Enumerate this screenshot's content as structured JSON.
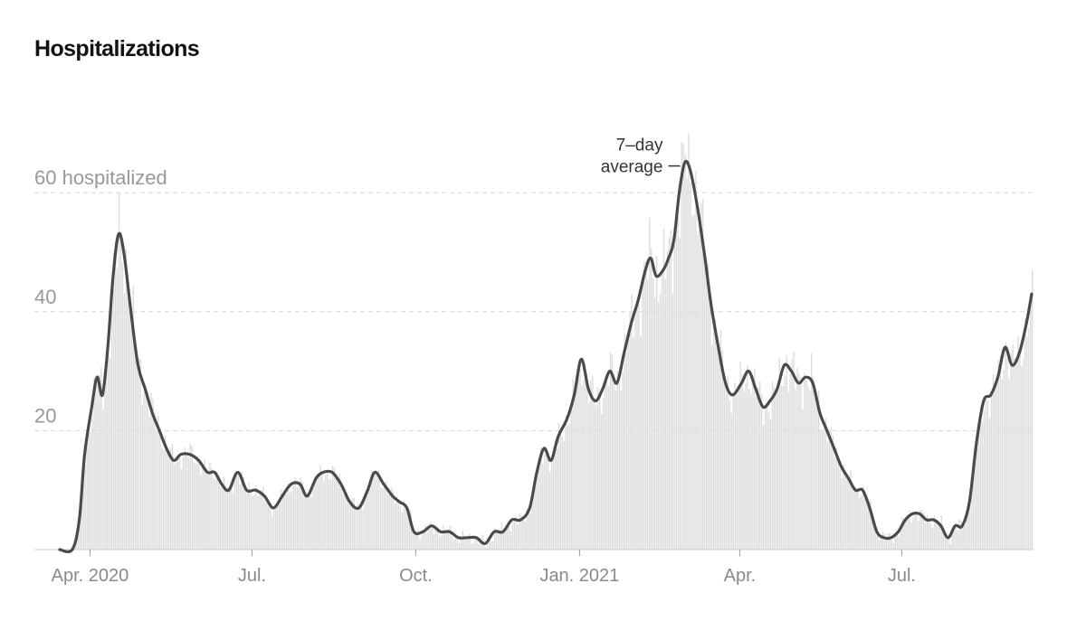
{
  "chart_data": {
    "type": "bar",
    "title": "Hospitalizations",
    "y_unit_label": "hospitalized",
    "ylim": [
      0,
      72
    ],
    "y_ticks": [
      20,
      40,
      60
    ],
    "grid": "horizontal-dashed",
    "x_ticks": [
      {
        "date": "2020-04-01",
        "label": "Apr. 2020"
      },
      {
        "date": "2020-07-01",
        "label": "Jul."
      },
      {
        "date": "2020-10-01",
        "label": "Oct."
      },
      {
        "date": "2021-01-01",
        "label": "Jan. 2021"
      },
      {
        "date": "2021-04-01",
        "label": "Apr."
      },
      {
        "date": "2021-07-01",
        "label": "Jul."
      }
    ],
    "date_range": [
      "2020-03-15",
      "2021-09-12"
    ],
    "series": [
      {
        "name": "7-day average",
        "kind": "line",
        "color": "#4a4a4a",
        "points": [
          [
            "2020-03-15",
            0
          ],
          [
            "2020-03-22",
            0
          ],
          [
            "2020-03-26",
            5
          ],
          [
            "2020-03-29",
            16
          ],
          [
            "2020-04-02",
            24
          ],
          [
            "2020-04-05",
            29
          ],
          [
            "2020-04-08",
            26
          ],
          [
            "2020-04-11",
            34
          ],
          [
            "2020-04-14",
            46
          ],
          [
            "2020-04-17",
            53
          ],
          [
            "2020-04-20",
            50
          ],
          [
            "2020-04-24",
            40
          ],
          [
            "2020-04-28",
            31
          ],
          [
            "2020-05-02",
            27
          ],
          [
            "2020-05-06",
            23
          ],
          [
            "2020-05-10",
            20
          ],
          [
            "2020-05-14",
            17
          ],
          [
            "2020-05-18",
            15
          ],
          [
            "2020-05-22",
            16
          ],
          [
            "2020-05-27",
            16
          ],
          [
            "2020-06-01",
            15
          ],
          [
            "2020-06-06",
            13
          ],
          [
            "2020-06-10",
            13
          ],
          [
            "2020-06-14",
            11
          ],
          [
            "2020-06-18",
            10
          ],
          [
            "2020-06-23",
            13
          ],
          [
            "2020-06-28",
            10
          ],
          [
            "2020-07-03",
            10
          ],
          [
            "2020-07-08",
            9
          ],
          [
            "2020-07-13",
            7
          ],
          [
            "2020-07-18",
            9
          ],
          [
            "2020-07-23",
            11
          ],
          [
            "2020-07-28",
            11
          ],
          [
            "2020-08-01",
            9
          ],
          [
            "2020-08-06",
            12
          ],
          [
            "2020-08-10",
            13
          ],
          [
            "2020-08-15",
            13
          ],
          [
            "2020-08-20",
            11
          ],
          [
            "2020-08-25",
            8
          ],
          [
            "2020-08-30",
            7
          ],
          [
            "2020-09-04",
            10
          ],
          [
            "2020-09-08",
            13
          ],
          [
            "2020-09-13",
            11
          ],
          [
            "2020-09-18",
            9
          ],
          [
            "2020-09-22",
            8
          ],
          [
            "2020-09-26",
            7
          ],
          [
            "2020-09-30",
            3
          ],
          [
            "2020-10-05",
            3
          ],
          [
            "2020-10-10",
            4
          ],
          [
            "2020-10-15",
            3
          ],
          [
            "2020-10-20",
            3
          ],
          [
            "2020-10-25",
            2
          ],
          [
            "2020-10-30",
            2
          ],
          [
            "2020-11-04",
            2
          ],
          [
            "2020-11-09",
            1
          ],
          [
            "2020-11-14",
            3
          ],
          [
            "2020-11-19",
            3
          ],
          [
            "2020-11-24",
            5
          ],
          [
            "2020-11-29",
            5
          ],
          [
            "2020-12-04",
            7
          ],
          [
            "2020-12-08",
            13
          ],
          [
            "2020-12-12",
            17
          ],
          [
            "2020-12-16",
            15
          ],
          [
            "2020-12-20",
            19
          ],
          [
            "2020-12-25",
            22
          ],
          [
            "2020-12-29",
            26
          ],
          [
            "2021-01-02",
            32
          ],
          [
            "2021-01-06",
            27
          ],
          [
            "2021-01-10",
            25
          ],
          [
            "2021-01-14",
            27
          ],
          [
            "2021-01-18",
            30
          ],
          [
            "2021-01-22",
            28
          ],
          [
            "2021-01-26",
            33
          ],
          [
            "2021-01-30",
            38
          ],
          [
            "2021-02-03",
            42
          ],
          [
            "2021-02-07",
            47
          ],
          [
            "2021-02-10",
            49
          ],
          [
            "2021-02-13",
            46
          ],
          [
            "2021-02-17",
            47
          ],
          [
            "2021-02-20",
            49
          ],
          [
            "2021-02-23",
            52
          ],
          [
            "2021-02-26",
            60
          ],
          [
            "2021-03-01",
            65
          ],
          [
            "2021-03-04",
            64
          ],
          [
            "2021-03-08",
            58
          ],
          [
            "2021-03-12",
            50
          ],
          [
            "2021-03-16",
            41
          ],
          [
            "2021-03-20",
            34
          ],
          [
            "2021-03-24",
            28
          ],
          [
            "2021-03-28",
            26
          ],
          [
            "2021-04-02",
            28
          ],
          [
            "2021-04-06",
            30
          ],
          [
            "2021-04-10",
            27
          ],
          [
            "2021-04-14",
            24
          ],
          [
            "2021-04-18",
            25
          ],
          [
            "2021-04-22",
            27
          ],
          [
            "2021-04-26",
            31
          ],
          [
            "2021-04-30",
            30
          ],
          [
            "2021-05-04",
            28
          ],
          [
            "2021-05-08",
            29
          ],
          [
            "2021-05-12",
            28
          ],
          [
            "2021-05-16",
            23
          ],
          [
            "2021-05-20",
            20
          ],
          [
            "2021-05-24",
            17
          ],
          [
            "2021-05-28",
            14
          ],
          [
            "2021-06-01",
            12
          ],
          [
            "2021-06-05",
            10
          ],
          [
            "2021-06-09",
            10
          ],
          [
            "2021-06-13",
            7
          ],
          [
            "2021-06-17",
            3
          ],
          [
            "2021-06-21",
            2
          ],
          [
            "2021-06-25",
            2
          ],
          [
            "2021-06-29",
            3
          ],
          [
            "2021-07-03",
            5
          ],
          [
            "2021-07-07",
            6
          ],
          [
            "2021-07-11",
            6
          ],
          [
            "2021-07-15",
            5
          ],
          [
            "2021-07-19",
            5
          ],
          [
            "2021-07-23",
            4
          ],
          [
            "2021-07-27",
            2
          ],
          [
            "2021-07-31",
            4
          ],
          [
            "2021-08-04",
            4
          ],
          [
            "2021-08-08",
            8
          ],
          [
            "2021-08-12",
            18
          ],
          [
            "2021-08-16",
            25
          ],
          [
            "2021-08-20",
            26
          ],
          [
            "2021-08-24",
            29
          ],
          [
            "2021-08-28",
            34
          ],
          [
            "2021-09-01",
            31
          ],
          [
            "2021-09-05",
            33
          ],
          [
            "2021-09-09",
            38
          ],
          [
            "2021-09-12",
            43
          ]
        ]
      }
    ],
    "daily_bars": {
      "kind": "bar",
      "color": "#dcdcdc",
      "description_source": "daily values fluctuate around the 7-day average",
      "peaks": [
        [
          "2020-04-17",
          60
        ],
        [
          "2021-03-03",
          70
        ],
        [
          "2021-09-12",
          47
        ]
      ]
    },
    "annotations": [
      {
        "lines": [
          "7–day",
          "average"
        ],
        "date": "2021-02-28",
        "value": 64.5
      }
    ]
  }
}
